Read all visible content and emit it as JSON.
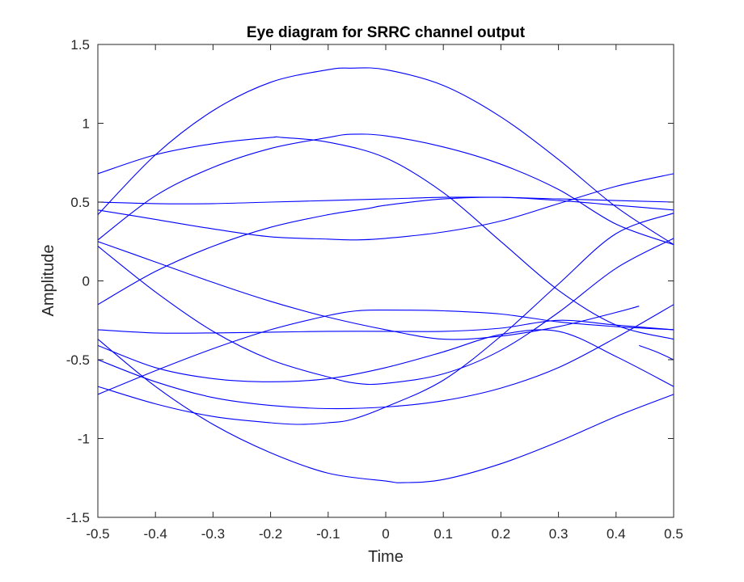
{
  "chart_data": {
    "type": "line",
    "title": "Eye diagram for SRRC channel output",
    "xlabel": "Time",
    "ylabel": "Amplitude",
    "xlim": [
      -0.5,
      0.5
    ],
    "ylim": [
      -1.5,
      1.5
    ],
    "xticks": [
      "-0.5",
      "-0.4",
      "-0.3",
      "-0.2",
      "-0.1",
      "0",
      "0.1",
      "0.2",
      "0.3",
      "0.4",
      "0.5"
    ],
    "yticks": [
      "-1.5",
      "-1",
      "-0.5",
      "0",
      "0.5",
      "1",
      "1.5"
    ],
    "grid": false,
    "legend": false,
    "line_color": "#0000ff",
    "series": [
      {
        "points": [
          [
            -0.5,
            0.42
          ],
          [
            -0.4,
            0.8
          ],
          [
            -0.3,
            1.08
          ],
          [
            -0.2,
            1.26
          ],
          [
            -0.1,
            1.34
          ],
          [
            -0.06,
            1.35
          ],
          [
            0,
            1.34
          ],
          [
            0.1,
            1.24
          ],
          [
            0.2,
            1.04
          ],
          [
            0.3,
            0.77
          ],
          [
            0.4,
            0.47
          ],
          [
            0.5,
            0.23
          ]
        ]
      },
      {
        "points": [
          [
            -0.5,
            -0.37
          ],
          [
            -0.4,
            -0.67
          ],
          [
            -0.3,
            -0.91
          ],
          [
            -0.2,
            -1.09
          ],
          [
            -0.1,
            -1.22
          ],
          [
            0,
            -1.27
          ],
          [
            0.03,
            -1.28
          ],
          [
            0.1,
            -1.26
          ],
          [
            0.2,
            -1.16
          ],
          [
            0.3,
            -1.02
          ],
          [
            0.4,
            -0.86
          ],
          [
            0.5,
            -0.72
          ]
        ]
      },
      {
        "points": [
          [
            -0.5,
            0.26
          ],
          [
            -0.4,
            0.54
          ],
          [
            -0.3,
            0.72
          ],
          [
            -0.2,
            0.84
          ],
          [
            -0.1,
            0.91
          ],
          [
            -0.06,
            0.93
          ],
          [
            0,
            0.92
          ],
          [
            0.1,
            0.85
          ],
          [
            0.2,
            0.74
          ],
          [
            0.3,
            0.58
          ],
          [
            0.4,
            0.36
          ],
          [
            0.5,
            0.23
          ]
        ]
      },
      {
        "points": [
          [
            -0.5,
            0.68
          ],
          [
            -0.4,
            0.8
          ],
          [
            -0.3,
            0.87
          ],
          [
            -0.2,
            0.91
          ],
          [
            -0.18,
            0.91
          ],
          [
            -0.1,
            0.88
          ],
          [
            0,
            0.78
          ],
          [
            0.1,
            0.56
          ],
          [
            0.2,
            0.25
          ],
          [
            0.3,
            -0.06
          ],
          [
            0.4,
            -0.28
          ],
          [
            0.5,
            -0.37
          ]
        ]
      },
      {
        "points": [
          [
            -0.5,
            0.5
          ],
          [
            -0.4,
            0.49
          ],
          [
            -0.3,
            0.49
          ],
          [
            -0.2,
            0.5
          ],
          [
            -0.1,
            0.51
          ],
          [
            0,
            0.52
          ],
          [
            0.1,
            0.53
          ],
          [
            0.2,
            0.53
          ],
          [
            0.3,
            0.52
          ],
          [
            0.4,
            0.51
          ],
          [
            0.5,
            0.5
          ]
        ]
      },
      {
        "points": [
          [
            -0.5,
            0.45
          ],
          [
            -0.4,
            0.39
          ],
          [
            -0.3,
            0.33
          ],
          [
            -0.2,
            0.28
          ],
          [
            -0.1,
            0.265
          ],
          [
            -0.05,
            0.26
          ],
          [
            0,
            0.27
          ],
          [
            0.1,
            0.31
          ],
          [
            0.2,
            0.38
          ],
          [
            0.3,
            0.49
          ],
          [
            0.4,
            0.6
          ],
          [
            0.5,
            0.68
          ]
        ]
      },
      {
        "points": [
          [
            -0.5,
            -0.15
          ],
          [
            -0.4,
            0.06
          ],
          [
            -0.3,
            0.22
          ],
          [
            -0.2,
            0.34
          ],
          [
            -0.1,
            0.42
          ],
          [
            -0.03,
            0.46
          ],
          [
            0,
            0.48
          ],
          [
            0.1,
            0.52
          ],
          [
            0.2,
            0.53
          ],
          [
            0.3,
            0.51
          ],
          [
            0.4,
            0.48
          ],
          [
            0.5,
            0.45
          ]
        ]
      },
      {
        "points": [
          [
            -0.5,
            0.22
          ],
          [
            -0.4,
            -0.07
          ],
          [
            -0.3,
            -0.32
          ],
          [
            -0.2,
            -0.5
          ],
          [
            -0.1,
            -0.61
          ],
          [
            -0.05,
            -0.65
          ],
          [
            0,
            -0.65
          ],
          [
            0.1,
            -0.59
          ],
          [
            0.2,
            -0.44
          ],
          [
            0.3,
            -0.2
          ],
          [
            0.4,
            0.08
          ],
          [
            0.5,
            0.27
          ]
        ]
      },
      {
        "points": [
          [
            -0.5,
            0.25
          ],
          [
            -0.4,
            0.12
          ],
          [
            -0.3,
            -0.01
          ],
          [
            -0.2,
            -0.13
          ],
          [
            -0.1,
            -0.23
          ],
          [
            0,
            -0.31
          ],
          [
            0.1,
            -0.37
          ],
          [
            0.2,
            -0.35
          ],
          [
            0.3,
            -0.29
          ],
          [
            0.4,
            -0.2
          ],
          [
            0.44,
            -0.16
          ]
        ]
      },
      {
        "points": [
          [
            -0.5,
            -0.31
          ],
          [
            -0.4,
            -0.33
          ],
          [
            -0.3,
            -0.33
          ],
          [
            -0.2,
            -0.325
          ],
          [
            -0.1,
            -0.32
          ],
          [
            0,
            -0.32
          ],
          [
            0.1,
            -0.32
          ],
          [
            0.2,
            -0.3
          ],
          [
            0.3,
            -0.25
          ],
          [
            0.4,
            -0.28
          ],
          [
            0.5,
            -0.31
          ]
        ]
      },
      {
        "points": [
          [
            -0.5,
            -0.72
          ],
          [
            -0.4,
            -0.57
          ],
          [
            -0.3,
            -0.43
          ],
          [
            -0.2,
            -0.31
          ],
          [
            -0.1,
            -0.22
          ],
          [
            -0.05,
            -0.19
          ],
          [
            0,
            -0.185
          ],
          [
            0.1,
            -0.19
          ],
          [
            0.2,
            -0.21
          ],
          [
            0.3,
            -0.26
          ],
          [
            0.4,
            -0.29
          ],
          [
            0.5,
            -0.31
          ]
        ]
      },
      {
        "points": [
          [
            -0.5,
            -0.5
          ],
          [
            -0.4,
            -0.64
          ],
          [
            -0.3,
            -0.74
          ],
          [
            -0.2,
            -0.79
          ],
          [
            -0.1,
            -0.81
          ],
          [
            0,
            -0.8
          ],
          [
            0.1,
            -0.76
          ],
          [
            0.2,
            -0.68
          ],
          [
            0.3,
            -0.55
          ],
          [
            0.4,
            -0.36
          ],
          [
            0.5,
            -0.15
          ]
        ]
      },
      {
        "points": [
          [
            -0.5,
            -0.67
          ],
          [
            -0.4,
            -0.78
          ],
          [
            -0.3,
            -0.86
          ],
          [
            -0.2,
            -0.9
          ],
          [
            -0.15,
            -0.91
          ],
          [
            -0.1,
            -0.9
          ],
          [
            -0.06,
            -0.88
          ],
          [
            0,
            -0.8
          ],
          [
            0.1,
            -0.63
          ],
          [
            0.2,
            -0.35
          ],
          [
            0.3,
            -0.02
          ],
          [
            0.4,
            0.3
          ],
          [
            0.5,
            0.43
          ]
        ]
      },
      {
        "points": [
          [
            -0.5,
            -0.41
          ],
          [
            -0.4,
            -0.55
          ],
          [
            -0.3,
            -0.62
          ],
          [
            -0.2,
            -0.64
          ],
          [
            -0.1,
            -0.62
          ],
          [
            0,
            -0.55
          ],
          [
            0.1,
            -0.45
          ],
          [
            0.2,
            -0.34
          ],
          [
            0.3,
            -0.32
          ],
          [
            0.4,
            -0.48
          ],
          [
            0.5,
            -0.67
          ]
        ]
      },
      {
        "points": [
          [
            0.44,
            -0.41
          ],
          [
            0.47,
            -0.45
          ],
          [
            0.5,
            -0.5
          ]
        ]
      }
    ]
  }
}
